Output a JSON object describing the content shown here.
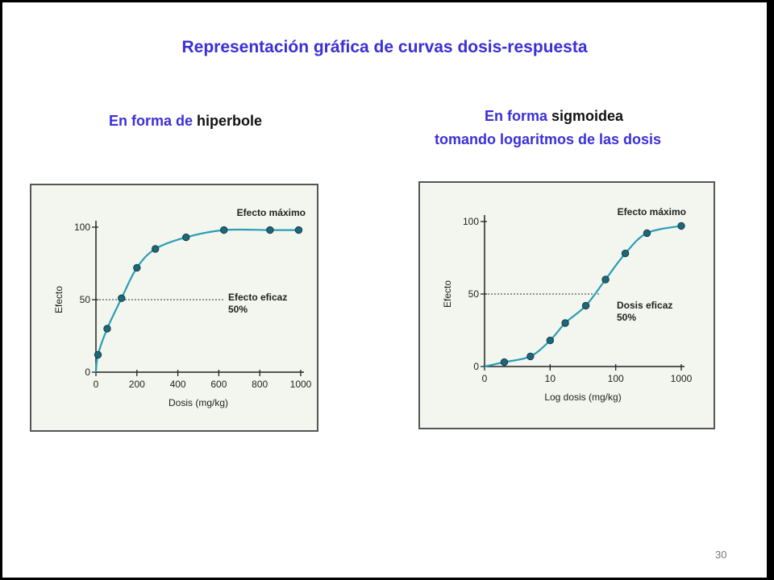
{
  "slide": {
    "title": "Representación gráfica de curvas dosis-respuesta",
    "left_heading": {
      "part1": "En forma de ",
      "part2": "hiperbole"
    },
    "right_heading": {
      "line1_part1": "En forma ",
      "line1_part2": "sigmoidea",
      "line2": "tomando logaritmos de las dosis"
    },
    "page_number": "30",
    "colors": {
      "title": "#3b2fd6",
      "curve": "#2a9db5",
      "marker": "#1f6678",
      "panel_bg": "#f3f6ee"
    }
  },
  "chart_data": [
    {
      "type": "line",
      "xlabel": "Dosis (mg/kg)",
      "ylabel": "Efecto",
      "xlim": [
        0,
        1000
      ],
      "ylim": [
        0,
        100
      ],
      "x_ticks": [
        "0",
        "200",
        "400",
        "600",
        "800",
        "1000"
      ],
      "y_ticks": [
        "0",
        "50",
        "100"
      ],
      "x": [
        10,
        55,
        125,
        200,
        290,
        440,
        625,
        850,
        990
      ],
      "y": [
        12,
        30,
        51,
        72,
        85,
        93,
        98,
        98,
        98
      ],
      "annotations": {
        "max_label": "Efecto máximo",
        "ec50_line1": "Efecto eficaz",
        "ec50_line2": "50%"
      },
      "reference_line": 50
    },
    {
      "type": "line",
      "xlabel": "Log dosis (mg/kg)",
      "ylabel": "Efecto",
      "xscale": "log",
      "xlim": [
        1,
        1000
      ],
      "ylim": [
        0,
        100
      ],
      "x_ticks": [
        "0",
        "10",
        "100",
        "1000"
      ],
      "y_ticks": [
        "0",
        "50",
        "100"
      ],
      "x": [
        2,
        5,
        10,
        17,
        35,
        70,
        140,
        300,
        1000
      ],
      "y": [
        3,
        7,
        18,
        30,
        42,
        60,
        78,
        92,
        97
      ],
      "annotations": {
        "max_label": "Efecto máximo",
        "ec50_line1": "Dosis eficaz",
        "ec50_line2": "50%"
      },
      "reference_line": 50
    }
  ]
}
